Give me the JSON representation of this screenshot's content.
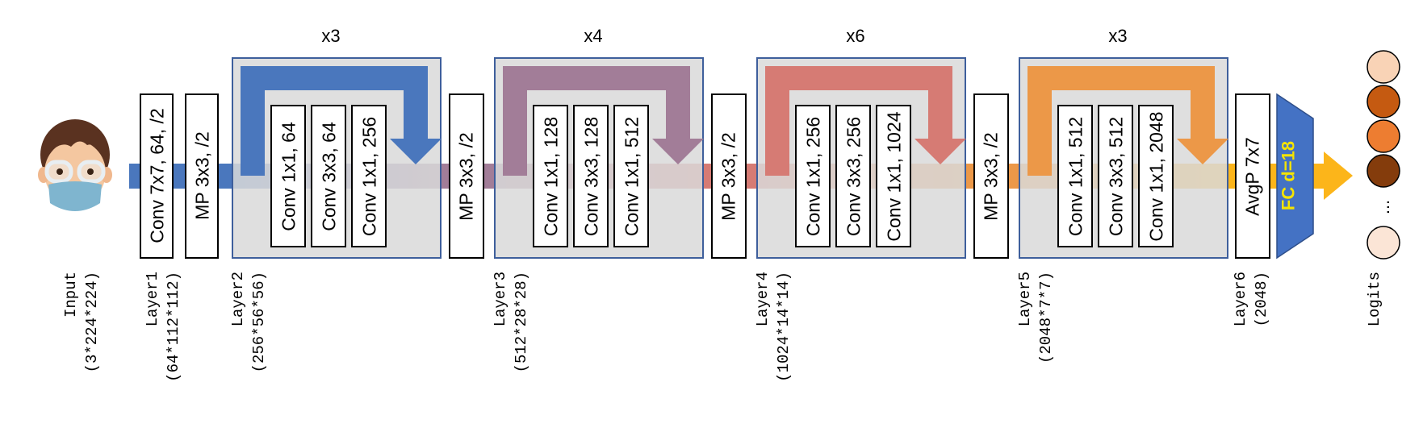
{
  "colors": {
    "blue": "#4a77bd",
    "purple": "#a27d98",
    "red": "#d67b74",
    "orange": "#ec9848",
    "yellow": "#fcb51a",
    "panel": "#d9d9d9",
    "panel_border": "#3e5f9c",
    "fc": "#4472c4",
    "fc_text": "#f5e400"
  },
  "input": {
    "label": "Input",
    "shape": "(3*224*224)",
    "avatar_icon": "memoji-avatar-with-glasses-and-mask"
  },
  "layer1": {
    "label": "Layer1",
    "shape": "(64*112*112)",
    "conv": "Conv 7x7, 64, /2",
    "pool": "MP 3x3, /2"
  },
  "layer2": {
    "label": "Layer2",
    "shape": "(256*56*56)",
    "repeat": "x3",
    "convs": [
      "Conv 1x1, 64",
      "Conv 3x3, 64",
      "Conv 1x1, 256"
    ]
  },
  "layer3": {
    "label": "Layer3",
    "shape": "(512*28*28)",
    "pool": "MP 3x3, /2",
    "repeat": "x4",
    "convs": [
      "Conv 1x1, 128",
      "Conv 3x3, 128",
      "Conv 1x1, 512"
    ]
  },
  "layer4": {
    "label": "Layer4",
    "shape": "(1024*14*14)",
    "pool": "MP 3x3, /2",
    "repeat": "x6",
    "convs": [
      "Conv 1x1, 256",
      "Conv 3x3, 256",
      "Conv 1x1, 1024"
    ]
  },
  "layer5": {
    "label": "Layer5",
    "shape": "(2048*7*7)",
    "pool": "MP 3x3, /2",
    "repeat": "x3",
    "convs": [
      "Conv 1x1, 512",
      "Conv 3x3, 512",
      "Conv 1x1, 2048"
    ]
  },
  "layer6": {
    "label": "Layer6",
    "shape": "(2048)",
    "pool": "AvgP 7x7",
    "fc": "FC d=18"
  },
  "logits": {
    "label": "Logits",
    "ellipsis": "...",
    "circle_colors": [
      "#f9d3b6",
      "#c55a11",
      "#ed7d31",
      "#843c0c",
      "#fbe5d6"
    ]
  }
}
